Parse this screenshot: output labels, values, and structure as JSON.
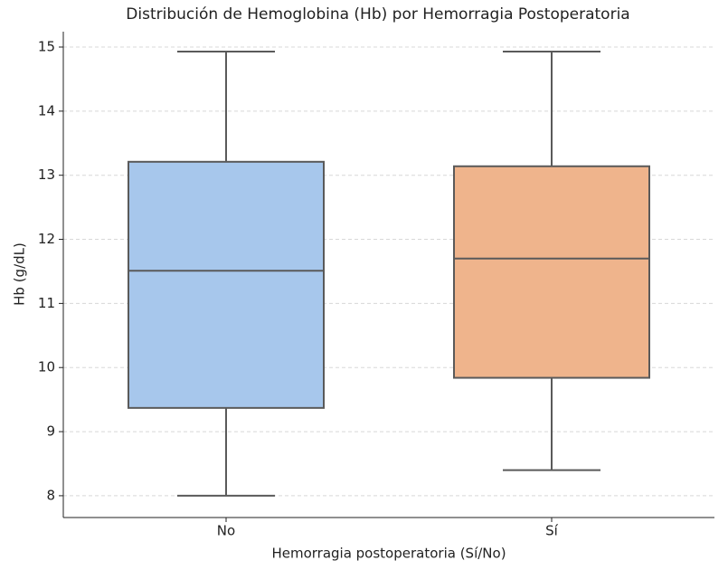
{
  "chart_data": {
    "type": "box",
    "title": "Distribución de Hemoglobina (Hb) por Hemorragia Postoperatoria",
    "x_label": "Hemorragia postoperatoria (Sí/No)",
    "y_label": "Hb (g/dL)",
    "categories": [
      "No",
      "Sí"
    ],
    "boxes": [
      {
        "min": 8.0,
        "q1": 9.37,
        "median": 11.51,
        "q3": 13.21,
        "max": 14.93
      },
      {
        "min": 8.4,
        "q1": 9.84,
        "median": 11.7,
        "q3": 13.14,
        "max": 14.93
      }
    ],
    "colors": [
      "#a7c7ec",
      "#efb48c"
    ],
    "ylim": [
      7.66,
      15.24
    ],
    "yticks": [
      8,
      9,
      10,
      11,
      12,
      13,
      14,
      15
    ],
    "grid": true
  }
}
